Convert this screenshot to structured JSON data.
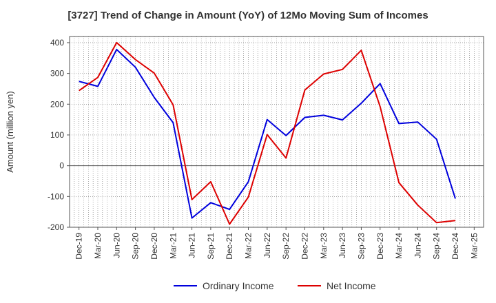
{
  "title": "[3727]  Trend of Change in Amount (YoY) of 12Mo Moving Sum of Incomes",
  "chart_data": {
    "type": "line",
    "title": "[3727]  Trend of Change in Amount (YoY) of 12Mo Moving Sum of Incomes",
    "xlabel": "",
    "ylabel": "Amount (million yen)",
    "ylim": [
      -200,
      420
    ],
    "yticks": [
      -200,
      -100,
      0,
      100,
      200,
      300,
      400
    ],
    "grid": true,
    "legend_position": "bottom",
    "x": [
      "Dec-19",
      "Mar-20",
      "Jun-20",
      "Sep-20",
      "Dec-20",
      "Mar-21",
      "Jun-21",
      "Sep-21",
      "Dec-21",
      "Mar-22",
      "Jun-22",
      "Sep-22",
      "Dec-22",
      "Mar-23",
      "Jun-23",
      "Sep-23",
      "Dec-23",
      "Mar-24",
      "Jun-24",
      "Sep-24",
      "Dec-24",
      "Mar-25"
    ],
    "series": [
      {
        "name": "Ordinary Income",
        "color": "#0000dd",
        "values": [
          274,
          258,
          378,
          320,
          222,
          140,
          -170,
          -120,
          -142,
          -52,
          150,
          98,
          157,
          164,
          149,
          203,
          267,
          137,
          142,
          86,
          -107,
          null
        ]
      },
      {
        "name": "Net Income",
        "color": "#dd0000",
        "values": [
          244,
          287,
          400,
          345,
          301,
          198,
          -110,
          -52,
          -190,
          -102,
          101,
          25,
          246,
          298,
          313,
          375,
          192,
          -55,
          -128,
          -185,
          -178,
          null
        ]
      }
    ]
  }
}
